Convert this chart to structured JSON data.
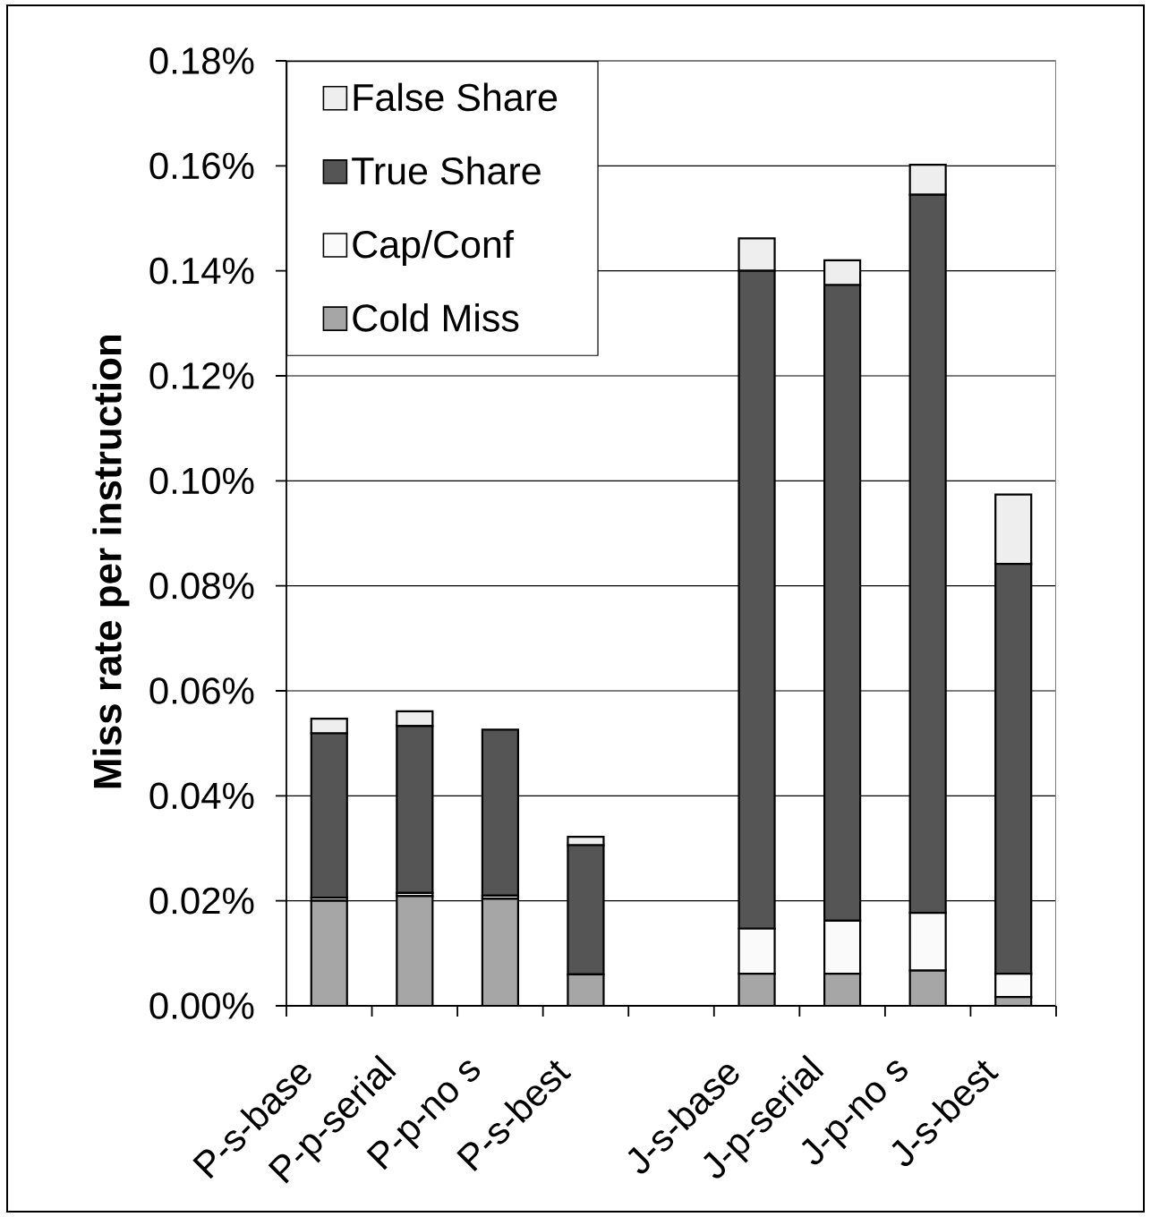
{
  "chart_data": {
    "type": "bar",
    "stacked": true,
    "ylabel": "Miss rate per instruction",
    "categories": [
      "P-s-base",
      "P-p-serial",
      "P-p-no s",
      "P-s-best",
      null,
      "J-s-base",
      "J-p-serial",
      "J-p-no s",
      "J-s-best"
    ],
    "series": [
      {
        "name": "Cold Miss",
        "color": "#a6a6a6",
        "values": [
          0.02,
          0.0209,
          0.0204,
          0.006,
          null,
          0.0061,
          0.0061,
          0.0067,
          0.0017
        ]
      },
      {
        "name": "Cap/Conf",
        "color": "#fafafa",
        "values": [
          0.0006,
          0.0006,
          0.0006,
          0,
          null,
          0.0086,
          0.0101,
          0.011,
          0.0044
        ]
      },
      {
        "name": "True Share",
        "color": "#555555",
        "values": [
          0.0313,
          0.0318,
          0.0316,
          0.0246,
          null,
          0.1253,
          0.1211,
          0.1368,
          0.0781
        ]
      },
      {
        "name": "False Share",
        "color": "#eeeeee",
        "values": [
          0.0028,
          0.0028,
          0,
          0.0016,
          null,
          0.0062,
          0.0047,
          0.0057,
          0.0132
        ]
      }
    ],
    "ylim": [
      0,
      0.18
    ],
    "yticks": [
      {
        "value": 0,
        "label": "0.00%"
      },
      {
        "value": 0.02,
        "label": "0.02%"
      },
      {
        "value": 0.04,
        "label": "0.04%"
      },
      {
        "value": 0.06,
        "label": "0.06%"
      },
      {
        "value": 0.08,
        "label": "0.08%"
      },
      {
        "value": 0.1,
        "label": "0.10%"
      },
      {
        "value": 0.12,
        "label": "0.12%"
      },
      {
        "value": 0.14,
        "label": "0.14%"
      },
      {
        "value": 0.16,
        "label": "0.16%"
      },
      {
        "value": 0.18,
        "label": "0.18%"
      }
    ],
    "grid": "y",
    "legend": "top left"
  }
}
